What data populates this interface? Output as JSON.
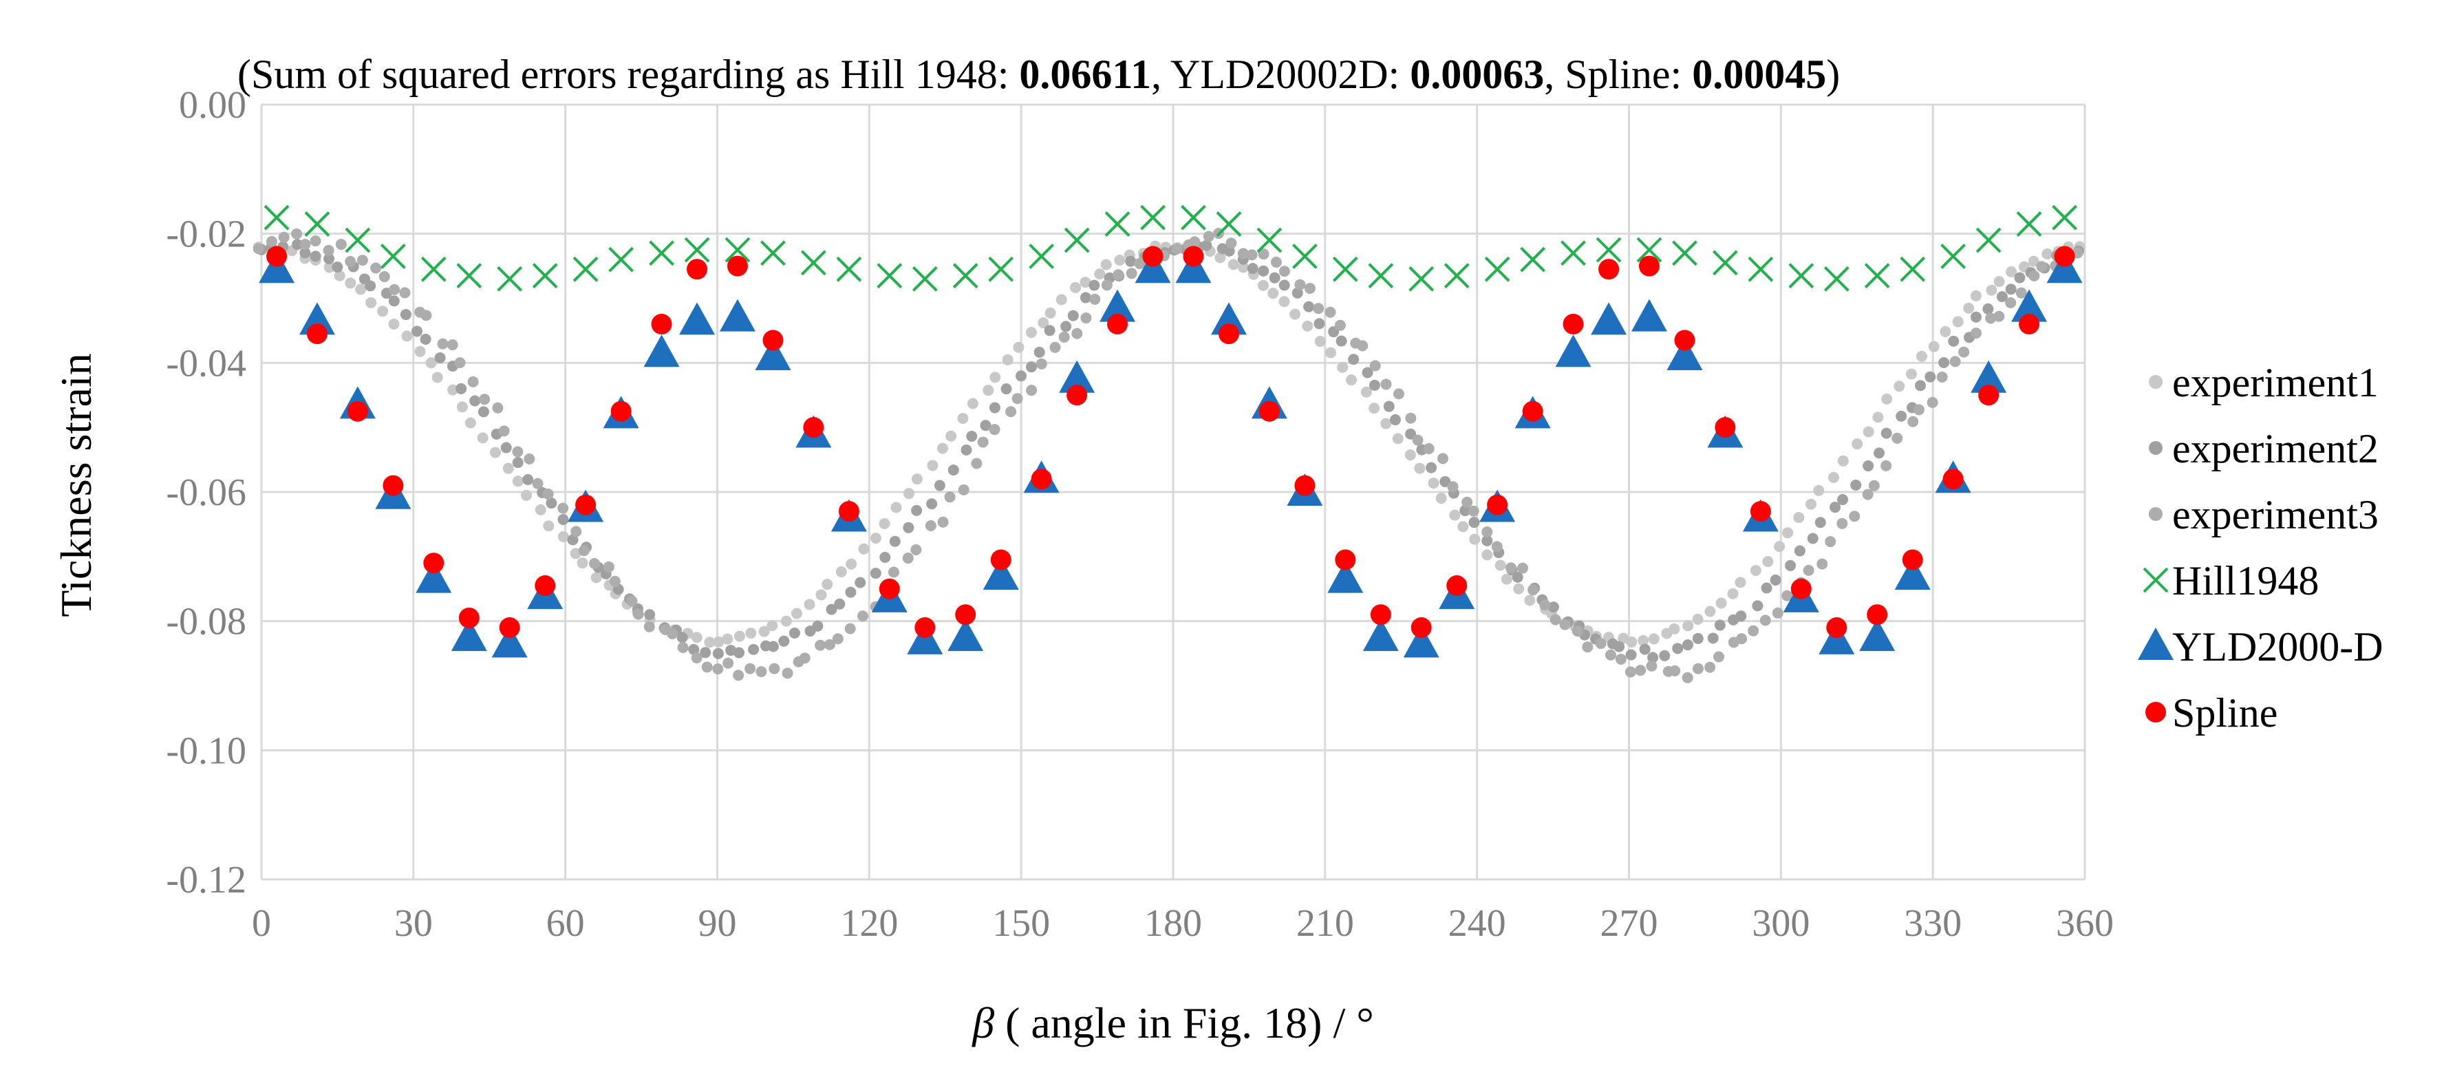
{
  "chart_data": {
    "type": "scatter",
    "title_parts": [
      {
        "key": "open",
        "text": "(Sum of squared errors regarding as  Hill 1948: ",
        "bold": false
      },
      {
        "key": "hill_val",
        "text": "0.06611",
        "bold": true
      },
      {
        "key": "sep1",
        "text": ", YLD20002D: ",
        "bold": false
      },
      {
        "key": "yld_val",
        "text": "0.00063",
        "bold": true
      },
      {
        "key": "sep2",
        "text": ", Spline: ",
        "bold": false
      },
      {
        "key": "spline_val",
        "text": "0.00045",
        "bold": true
      },
      {
        "key": "close",
        "text": ")",
        "bold": false
      }
    ],
    "xlabel_symbol": "β",
    "xlabel_rest": " ( angle in Fig. 18) / °",
    "ylabel": "Tickness strain",
    "xlim": [
      0,
      360
    ],
    "ylim": [
      -0.12,
      0.0
    ],
    "x_ticks": [
      "0",
      "30",
      "60",
      "90",
      "120",
      "150",
      "180",
      "210",
      "240",
      "270",
      "300",
      "330",
      "360"
    ],
    "x_tick_values": [
      0,
      30,
      60,
      90,
      120,
      150,
      180,
      210,
      240,
      270,
      300,
      330,
      360
    ],
    "y_ticks": [
      "0.00",
      "-0.02",
      "-0.04",
      "-0.06",
      "-0.08",
      "-0.10",
      "-0.12"
    ],
    "y_tick_values": [
      0.0,
      -0.02,
      -0.04,
      -0.06,
      -0.08,
      -0.1,
      -0.12
    ],
    "grid": true,
    "legend_position": "right",
    "experiment_series": [
      {
        "name": "experiment1",
        "color": "#c8c8c8",
        "mean": -0.0525,
        "amp": 0.0305,
        "phase": 0,
        "noise": 0.0008
      },
      {
        "name": "experiment2",
        "color": "#a0a0a0",
        "mean": -0.0535,
        "amp": 0.0315,
        "phase": 4,
        "noise": 0.0015
      },
      {
        "name": "experiment3",
        "color": "#adadad",
        "mean": -0.0545,
        "amp": 0.0335,
        "phase": 7,
        "noise": 0.0025
      }
    ],
    "model_series": [
      {
        "name": "Hill1948",
        "marker": "x",
        "color": "#22b14c",
        "x": [
          3,
          11,
          19,
          26,
          34,
          41,
          49,
          56,
          64,
          71,
          79,
          86,
          94,
          101,
          109,
          116,
          124,
          131,
          139,
          146,
          154,
          161,
          169,
          176,
          184,
          191,
          199,
          206,
          214,
          221,
          229,
          236,
          244,
          251,
          259,
          266,
          274,
          281,
          289,
          296,
          304,
          311,
          319,
          326,
          334,
          341,
          349,
          356
        ],
        "y": [
          -0.0175,
          -0.0185,
          -0.021,
          -0.0235,
          -0.0255,
          -0.0265,
          -0.027,
          -0.0265,
          -0.0255,
          -0.024,
          -0.023,
          -0.0225,
          -0.0225,
          -0.023,
          -0.0245,
          -0.0255,
          -0.0265,
          -0.027,
          -0.0265,
          -0.0255,
          -0.0235,
          -0.021,
          -0.0185,
          -0.0175,
          -0.0175,
          -0.0185,
          -0.021,
          -0.0235,
          -0.0255,
          -0.0265,
          -0.027,
          -0.0265,
          -0.0255,
          -0.024,
          -0.023,
          -0.0225,
          -0.0225,
          -0.023,
          -0.0245,
          -0.0255,
          -0.0265,
          -0.027,
          -0.0265,
          -0.0255,
          -0.0235,
          -0.021,
          -0.0185,
          -0.0175
        ]
      },
      {
        "name": "YLD2000-D",
        "marker": "triangle",
        "color": "#1f6fbf",
        "x": [
          3,
          11,
          19,
          26,
          34,
          41,
          49,
          56,
          64,
          71,
          79,
          86,
          94,
          101,
          109,
          116,
          124,
          131,
          139,
          146,
          154,
          161,
          169,
          176,
          184,
          191,
          199,
          206,
          214,
          221,
          229,
          236,
          244,
          251,
          259,
          266,
          274,
          281,
          289,
          296,
          304,
          311,
          319,
          326,
          334,
          341,
          349,
          356
        ],
        "y": [
          -0.0255,
          -0.0335,
          -0.0465,
          -0.0605,
          -0.0735,
          -0.0825,
          -0.0835,
          -0.076,
          -0.0625,
          -0.048,
          -0.0385,
          -0.0335,
          -0.033,
          -0.039,
          -0.051,
          -0.064,
          -0.0765,
          -0.083,
          -0.0825,
          -0.073,
          -0.058,
          -0.0425,
          -0.0315,
          -0.0255,
          -0.0255,
          -0.0335,
          -0.0465,
          -0.06,
          -0.0735,
          -0.0825,
          -0.0835,
          -0.076,
          -0.0625,
          -0.048,
          -0.0385,
          -0.0335,
          -0.033,
          -0.039,
          -0.051,
          -0.064,
          -0.0765,
          -0.083,
          -0.0825,
          -0.073,
          -0.058,
          -0.0425,
          -0.0315,
          -0.0255
        ]
      },
      {
        "name": "Spline",
        "marker": "circle",
        "color": "#ff0000",
        "x": [
          3,
          11,
          19,
          26,
          34,
          41,
          49,
          56,
          64,
          71,
          79,
          86,
          94,
          101,
          109,
          116,
          124,
          131,
          139,
          146,
          154,
          161,
          169,
          176,
          184,
          191,
          199,
          206,
          214,
          221,
          229,
          236,
          244,
          251,
          259,
          266,
          274,
          281,
          289,
          296,
          304,
          311,
          319,
          326,
          334,
          341,
          349,
          356
        ],
        "y": [
          -0.0235,
          -0.0355,
          -0.0475,
          -0.059,
          -0.071,
          -0.0795,
          -0.081,
          -0.0745,
          -0.062,
          -0.0475,
          -0.034,
          -0.0255,
          -0.025,
          -0.0365,
          -0.05,
          -0.063,
          -0.075,
          -0.081,
          -0.079,
          -0.0705,
          -0.058,
          -0.045,
          -0.034,
          -0.0235,
          -0.0235,
          -0.0355,
          -0.0475,
          -0.059,
          -0.0705,
          -0.079,
          -0.081,
          -0.0745,
          -0.062,
          -0.0475,
          -0.034,
          -0.0255,
          -0.025,
          -0.0365,
          -0.05,
          -0.063,
          -0.075,
          -0.081,
          -0.079,
          -0.0705,
          -0.058,
          -0.045,
          -0.034,
          -0.0235
        ]
      }
    ],
    "legend": [
      {
        "label": "experiment1",
        "marker": "dot",
        "color": "#c8c8c8"
      },
      {
        "label": "experiment2",
        "marker": "dot",
        "color": "#a0a0a0"
      },
      {
        "label": "experiment3",
        "marker": "dot",
        "color": "#adadad"
      },
      {
        "label": "Hill1948",
        "marker": "x",
        "color": "#22b14c"
      },
      {
        "label": "YLD2000-D",
        "marker": "triangle",
        "color": "#1f6fbf"
      },
      {
        "label": "Spline",
        "marker": "circle",
        "color": "#ff0000"
      }
    ]
  }
}
